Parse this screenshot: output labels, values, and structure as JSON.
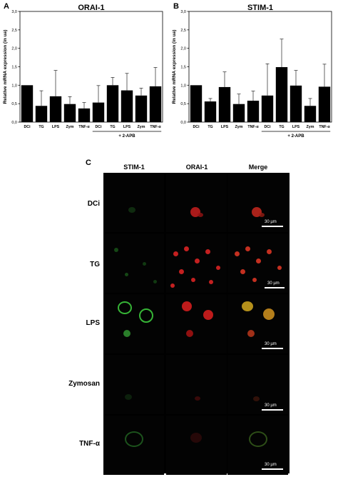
{
  "panel_a": {
    "letter": "A"
  },
  "panel_b": {
    "letter": "B"
  },
  "panel_c": {
    "letter": "C",
    "columns": [
      "STIM-1",
      "ORAI-1",
      "Merge"
    ],
    "rows": [
      "DCi",
      "TG",
      "LPS",
      "Zymosan",
      "TNF-α"
    ],
    "scale": "30 µm"
  },
  "chart_data": [
    {
      "type": "bar",
      "title": "ORAI-1",
      "ylabel": "Relative mRNA expression (in ua)",
      "ylim": [
        0,
        3
      ],
      "yticks": [
        "0,0",
        "0,5",
        "1,0",
        "1,5",
        "2,0",
        "2,5",
        "3,0"
      ],
      "categories": [
        "DCi",
        "TG",
        "LPS",
        "Zym",
        "TNF-α",
        "DCi",
        "TG",
        "LPS",
        "Zym",
        "TNF-α"
      ],
      "values": [
        1.0,
        0.44,
        0.7,
        0.49,
        0.37,
        0.53,
        1.0,
        0.86,
        0.72,
        0.97
      ],
      "errors": [
        0,
        0.41,
        0.7,
        0.2,
        0.16,
        0.46,
        0.21,
        0.46,
        0.2,
        0.51
      ],
      "group_label": "+ 2-APB",
      "group_start_index": 5
    },
    {
      "type": "bar",
      "title": "STIM-1",
      "ylabel": "Relative mRNA expression (in ua)",
      "ylim": [
        0,
        3
      ],
      "yticks": [
        "0,0",
        "0,5",
        "1,0",
        "1,5",
        "2,0",
        "2,5",
        "3,0"
      ],
      "categories": [
        "DCi",
        "TG",
        "LPS",
        "Zym",
        "TNF-α",
        "DCi",
        "TG",
        "LPS",
        "Zym",
        "TNF-α"
      ],
      "values": [
        1.0,
        0.56,
        0.95,
        0.49,
        0.58,
        0.72,
        1.49,
        0.99,
        0.44,
        0.96
      ],
      "errors": [
        0,
        0.08,
        0.41,
        0.27,
        0.26,
        0.86,
        0.76,
        0.41,
        0.2,
        0.61
      ],
      "group_label": "+ 2-APB",
      "group_start_index": 5
    }
  ]
}
